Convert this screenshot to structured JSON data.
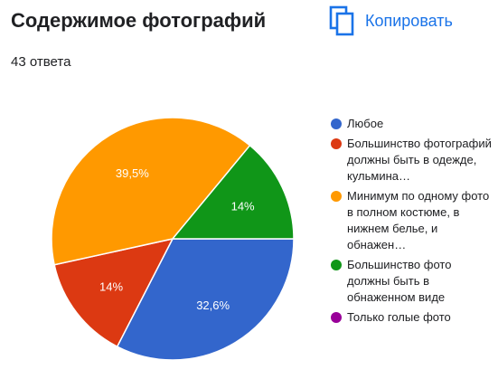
{
  "header": {
    "title": "Содержимое фотографий",
    "response_count": "43 ответа",
    "copy_label": "Копировать",
    "copy_icon": "copy-icon",
    "accent_color": "#1a73e8"
  },
  "chart_data": {
    "type": "pie",
    "title": "Содержимое фотографий",
    "legend_position": "right",
    "slices": [
      {
        "label": "Любое",
        "value": 32.6,
        "value_label": "32,6%",
        "color": "#3366cc"
      },
      {
        "label": "Большинство фотографий должны быть в одежде, кульмина…",
        "value": 14.0,
        "value_label": "14%",
        "color": "#dc3912"
      },
      {
        "label": "Минимум по одному фото в полном костюме, в нижнем белье, и обнажен…",
        "value": 39.5,
        "value_label": "39,5%",
        "color": "#ff9900"
      },
      {
        "label": "Большинство фото должны быть в обнаженном виде",
        "value": 14.0,
        "value_label": "14%",
        "color": "#109618"
      },
      {
        "label": "Только голые фото",
        "value": 0,
        "value_label": "",
        "color": "#990099"
      }
    ]
  }
}
